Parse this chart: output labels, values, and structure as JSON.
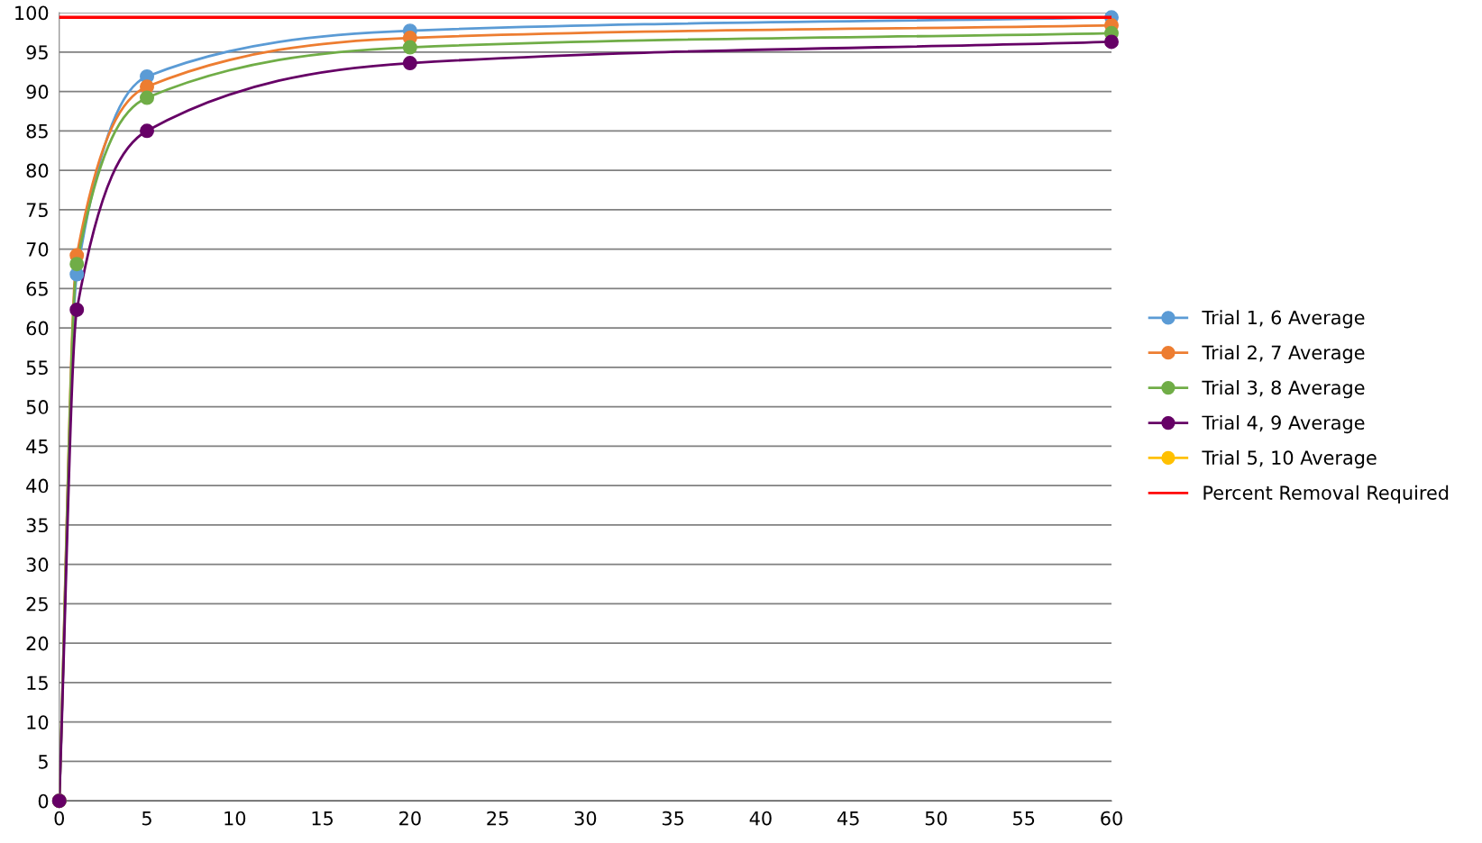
{
  "chart_data": {
    "type": "line",
    "x": [
      0,
      1,
      5,
      20,
      60
    ],
    "series": [
      {
        "name": "Trial 1, 6 Average",
        "color": "#5b9bd5",
        "values": [
          0,
          66.8,
          91.9,
          97.7,
          99.4
        ]
      },
      {
        "name": "Trial 2, 7 Average",
        "color": "#ed7d31",
        "values": [
          0,
          69.2,
          90.6,
          96.8,
          98.4
        ]
      },
      {
        "name": "Trial 3, 8 Average",
        "color": "#70ad47",
        "values": [
          0,
          68.1,
          89.2,
          95.6,
          97.4
        ]
      },
      {
        "name": "Trial 4, 9 Average",
        "color": "#660066",
        "values": [
          0,
          62.3,
          85.0,
          93.6,
          96.3
        ]
      },
      {
        "name": "Trial 5, 10 Average",
        "color": "#ffc000",
        "values": [
          null,
          null,
          null,
          null,
          null
        ]
      }
    ],
    "ref_lines": [
      {
        "axis": "y",
        "value": 99.4,
        "label": "Percent Removal Required",
        "color": "#ff0000",
        "line_style": "solid"
      }
    ],
    "xlim": [
      0,
      60
    ],
    "xticks": [
      0,
      5,
      10,
      15,
      20,
      25,
      30,
      35,
      40,
      45,
      50,
      55,
      60
    ],
    "ylim": [
      0,
      100
    ],
    "yticks": [
      0,
      5,
      10,
      15,
      20,
      25,
      30,
      35,
      40,
      45,
      50,
      55,
      60,
      65,
      70,
      75,
      80,
      85,
      90,
      95,
      100
    ],
    "grid": "y",
    "legend": "right",
    "marker": "circle",
    "line_style": "solid"
  }
}
